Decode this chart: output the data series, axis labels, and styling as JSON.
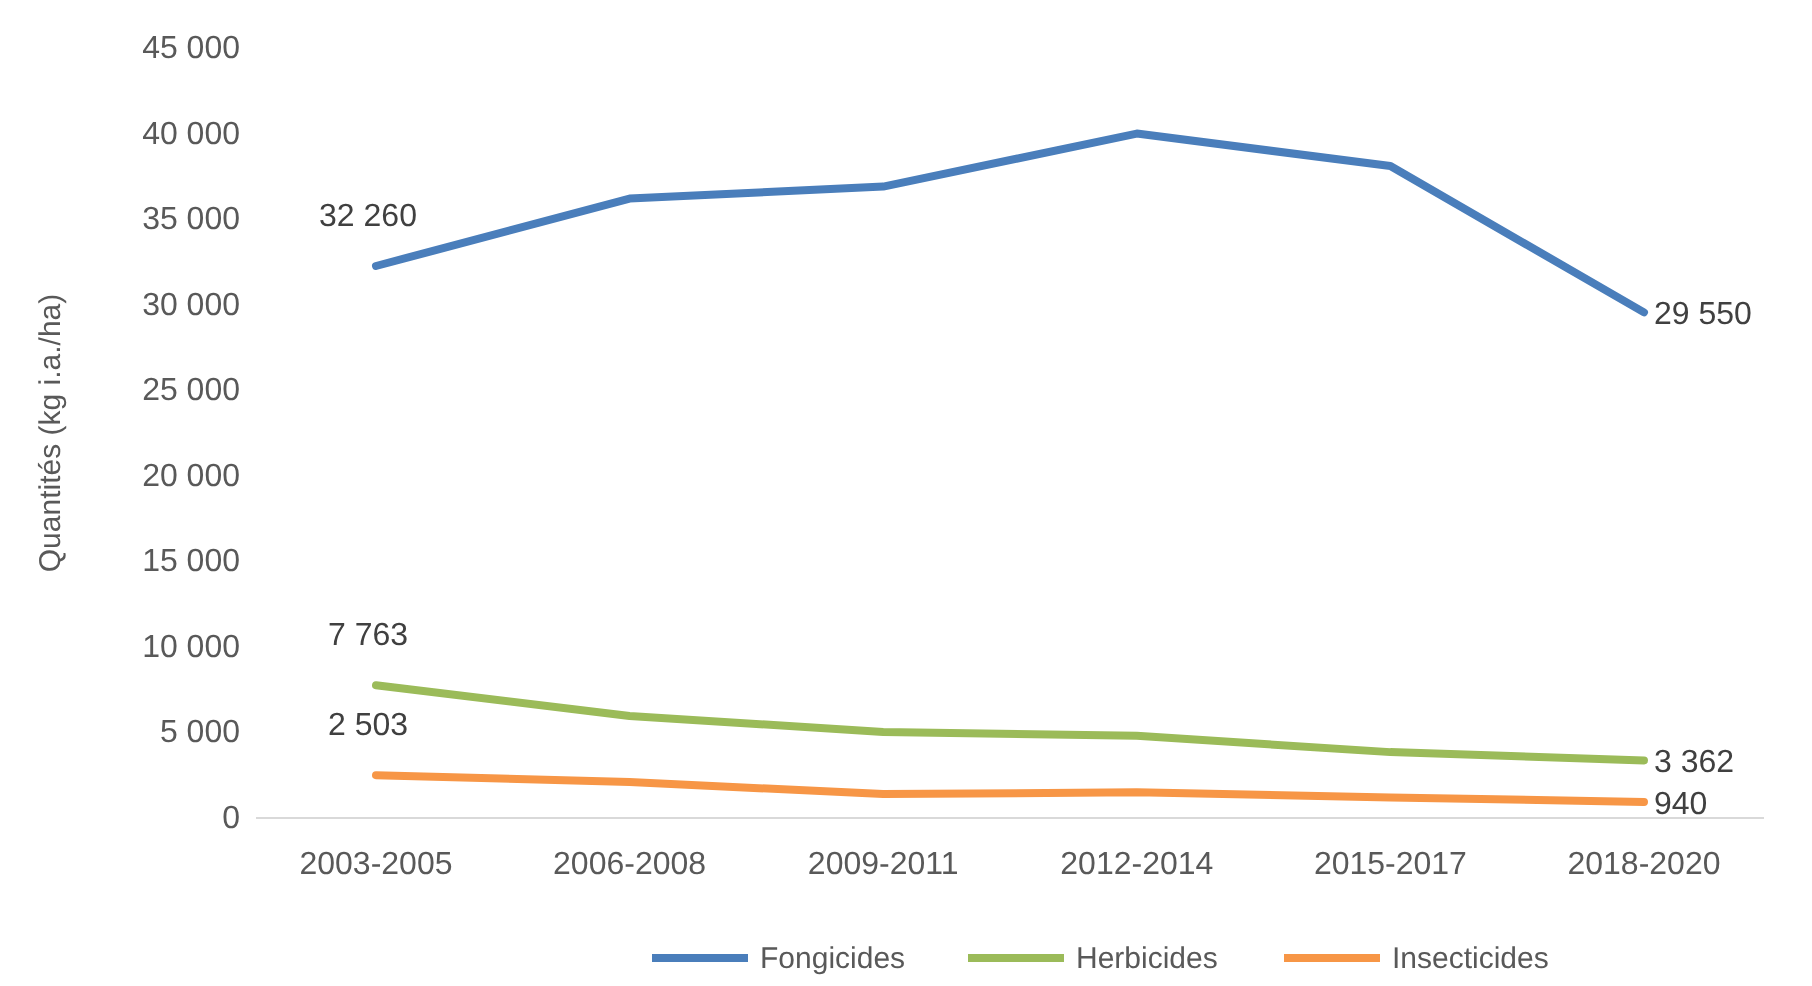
{
  "chart_data": {
    "type": "line",
    "ylabel": "Quantités (kg i.a./ha)",
    "categories": [
      "2003-2005",
      "2006-2008",
      "2009-2011",
      "2012-2014",
      "2015-2017",
      "2018-2020"
    ],
    "series": [
      {
        "name": "Fongicides",
        "color": "#4a7ebb",
        "values": [
          32260,
          36200,
          36900,
          40000,
          38100,
          29550
        ],
        "value_labels": [
          "32 260",
          null,
          null,
          null,
          null,
          "29 550"
        ]
      },
      {
        "name": "Herbicides",
        "color": "#9bbb59",
        "values": [
          7763,
          5960,
          5030,
          4800,
          3850,
          3362
        ],
        "value_labels": [
          "7 763",
          null,
          null,
          null,
          null,
          "3 362"
        ]
      },
      {
        "name": "Insecticides",
        "color": "#f79646",
        "values": [
          2503,
          2100,
          1400,
          1500,
          1200,
          940
        ],
        "value_labels": [
          "2 503",
          null,
          null,
          null,
          null,
          "940"
        ]
      }
    ],
    "ylim": [
      0,
      45000
    ],
    "yticks": [
      {
        "value": 0,
        "label": "0"
      },
      {
        "value": 5000,
        "label": "5 000"
      },
      {
        "value": 10000,
        "label": "10 000"
      },
      {
        "value": 15000,
        "label": "15 000"
      },
      {
        "value": 20000,
        "label": "20 000"
      },
      {
        "value": 25000,
        "label": "25 000"
      },
      {
        "value": 30000,
        "label": "30 000"
      },
      {
        "value": 35000,
        "label": "35 000"
      },
      {
        "value": 40000,
        "label": "40 000"
      },
      {
        "value": 45000,
        "label": "45 000"
      }
    ],
    "grid": false,
    "legend": "bottom",
    "marker": "none",
    "line_style": "solid"
  }
}
